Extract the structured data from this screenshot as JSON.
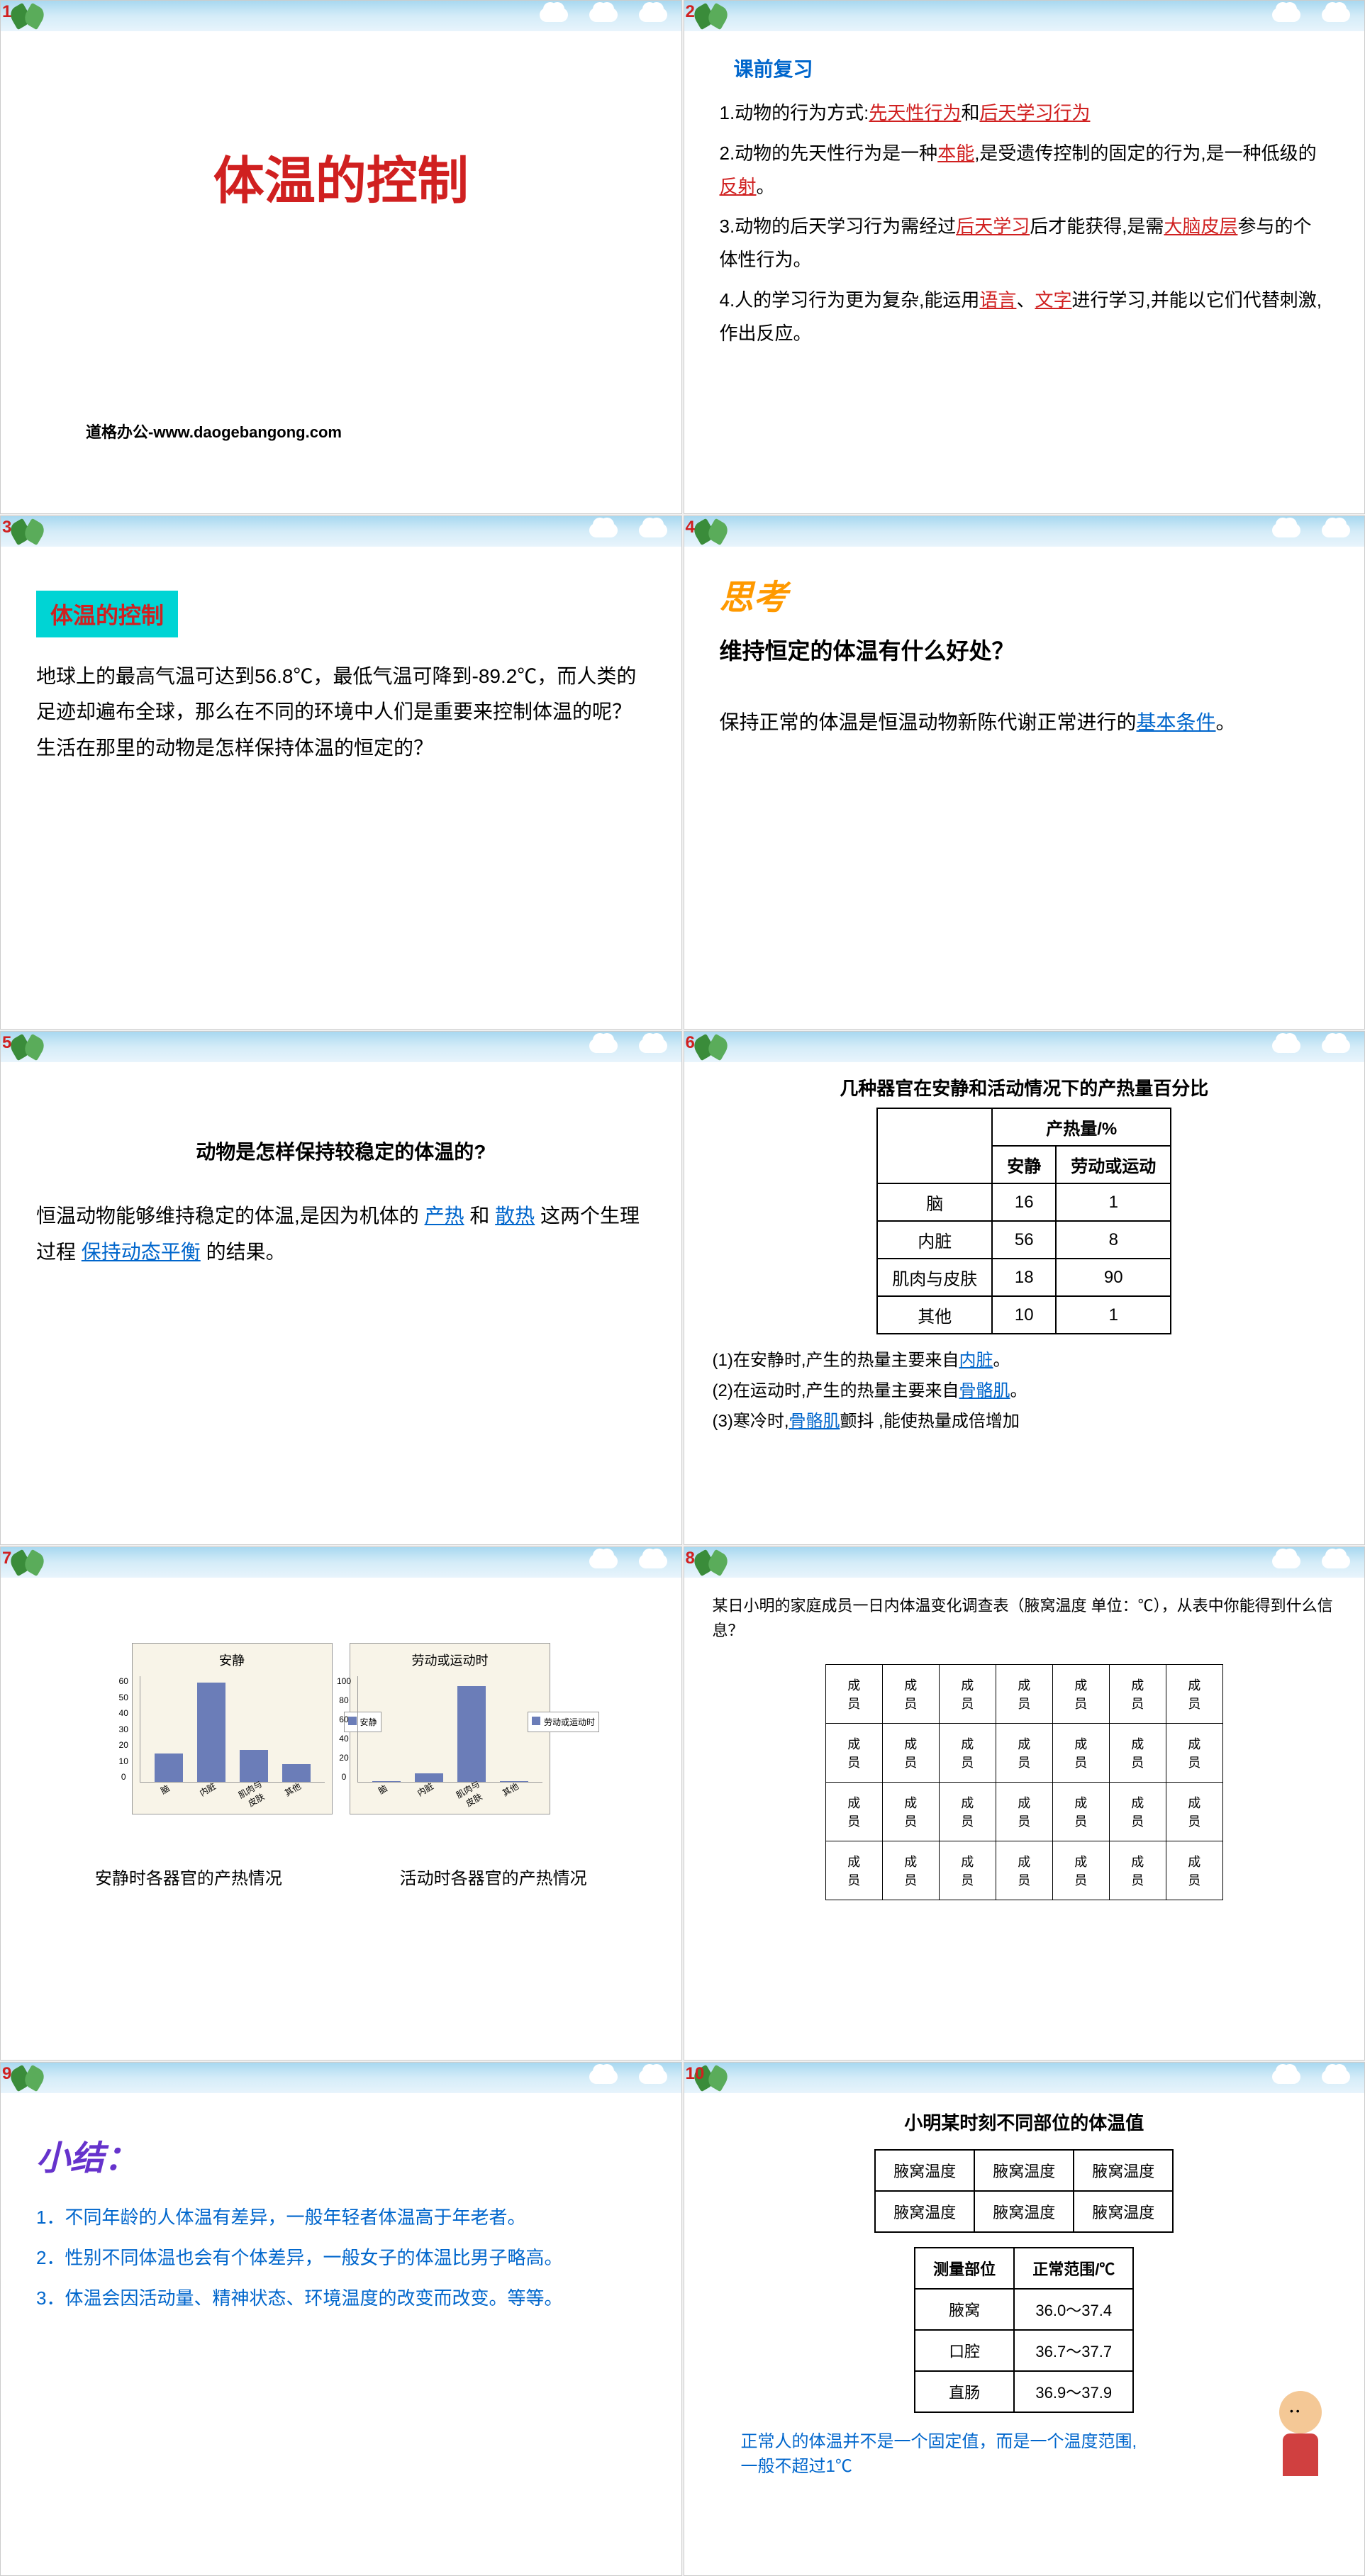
{
  "slide1": {
    "num": "1",
    "title": "体温的控制",
    "footer": "道格办公-www.daogebangong.com"
  },
  "slide2": {
    "num": "2",
    "section": "课前复习",
    "items": [
      {
        "pre": "1.动物的行为方式:",
        "ans1": "先天性行为",
        "mid": "和",
        "ans2": "后天学习行为"
      },
      {
        "pre": "2.动物的先天性行为是一种",
        "ans1": "本能",
        "mid": ",是受遗传控制的固定的行为,是一种低级的",
        "ans2": "反射",
        "post": "。"
      },
      {
        "pre": "3.动物的后天学习行为需经过",
        "ans1": "后天学习",
        "mid": "后才能获得,是需",
        "ans2": "大脑皮层",
        "post": "参与的个体性行为。"
      },
      {
        "pre": "4.人的学习行为更为复杂,能运用",
        "ans1": "语言",
        "mid": "、",
        "ans2": "文字",
        "post": "进行学习,并能以它们代替刺激,作出反应。"
      }
    ]
  },
  "slide3": {
    "num": "3",
    "title": "体温的控制",
    "body": "地球上的最高气温可达到56.8℃，最低气温可降到-89.2℃，而人类的足迹却遍布全球，那么在不同的环境中人们是重要来控制体温的呢？生活在那里的动物是怎样保持体温的恒定的？"
  },
  "slide4": {
    "num": "4",
    "think": "思考",
    "question": "维持恒定的体温有什么好处？",
    "body_pre": "保持正常的体温是恒温动物新陈代谢正常进行的",
    "body_ans": "基本条件",
    "body_post": "。"
  },
  "slide5": {
    "num": "5",
    "question": "动物是怎样保持较稳定的体温的?",
    "body_pre": "恒温动物能够维持稳定的体温,是因为机体的",
    "ans1": "产热",
    "mid1": "和",
    "ans2": "散热",
    "mid2": "这两个生理过程",
    "ans3": "保持动态平衡",
    "post": "的结果。"
  },
  "slide6": {
    "num": "6",
    "title": "几种器官在安静和活动情况下的产热量百分比",
    "header1": "产热量/%",
    "col1": "安静",
    "col2": "劳动或运动",
    "rows": [
      {
        "organ": "脑",
        "rest": "16",
        "active": "1"
      },
      {
        "organ": "内脏",
        "rest": "56",
        "active": "8"
      },
      {
        "organ": "肌肉与皮肤",
        "rest": "18",
        "active": "90"
      },
      {
        "organ": "其他",
        "rest": "10",
        "active": "1"
      }
    ],
    "notes": [
      {
        "pre": "(1)在安静时,产生的热量主要来自",
        "ans": "内脏",
        "post": "。"
      },
      {
        "pre": "(2)在运动时,产生的热量主要来自",
        "ans": "骨骼肌",
        "post": "。"
      },
      {
        "pre": "(3)寒冷时,",
        "ans": "骨骼肌",
        "post": "颤抖 ,能使热量成倍增加"
      }
    ]
  },
  "slide7": {
    "num": "7",
    "chart1": {
      "title": "安静",
      "legend": "安静",
      "ymax": 60,
      "ticks": [
        "0",
        "10",
        "20",
        "30",
        "40",
        "50",
        "60"
      ],
      "bars": [
        {
          "label": "脑",
          "value": 16
        },
        {
          "label": "内脏",
          "value": 56
        },
        {
          "label": "肌肉与皮肤",
          "value": 18
        },
        {
          "label": "其他",
          "value": 10
        }
      ],
      "caption": "安静时各器官的产热情况",
      "bar_color": "#6b7db8",
      "bg_color": "#f8f4e8"
    },
    "chart2": {
      "title": "劳动或运动时",
      "legend": "劳动或运动时",
      "ymax": 100,
      "ticks": [
        "0",
        "20",
        "40",
        "60",
        "80",
        "100"
      ],
      "bars": [
        {
          "label": "脑",
          "value": 1
        },
        {
          "label": "内脏",
          "value": 8
        },
        {
          "label": "肌肉与皮肤",
          "value": 90
        },
        {
          "label": "其他",
          "value": 1
        }
      ],
      "caption": "活动时各器官的产热情况",
      "bar_color": "#6b7db8",
      "bg_color": "#f8f4e8"
    }
  },
  "slide8": {
    "num": "8",
    "title": "某日小明的家庭成员一日内体温变化调查表（腋窝温度 单位：℃），从表中你能得到什么信息？",
    "cell": "成员"
  },
  "slide9": {
    "num": "9",
    "title": "小结：",
    "items": [
      "1．不同年龄的人体温有差异，一般年轻者体温高于年老者。",
      "2．性别不同体温也会有个体差异，一般女子的体温比男子略高。",
      "3．体温会因活动量、精神状态、环境温度的改变而改变。等等。"
    ]
  },
  "slide10": {
    "num": "10",
    "title": "小明某时刻不同部位的体温值",
    "table1_cell": "腋窝温度",
    "table2": {
      "header1": "测量部位",
      "header2": "正常范围/℃",
      "rows": [
        {
          "part": "腋窝",
          "range": "36.0～37.4"
        },
        {
          "part": "口腔",
          "range": "36.7～37.7"
        },
        {
          "part": "直肠",
          "range": "36.9～37.9"
        }
      ]
    },
    "note1": "正常人的体温并不是一个固定值，而是一个温度范围,",
    "note2": "一般不超过1℃"
  }
}
